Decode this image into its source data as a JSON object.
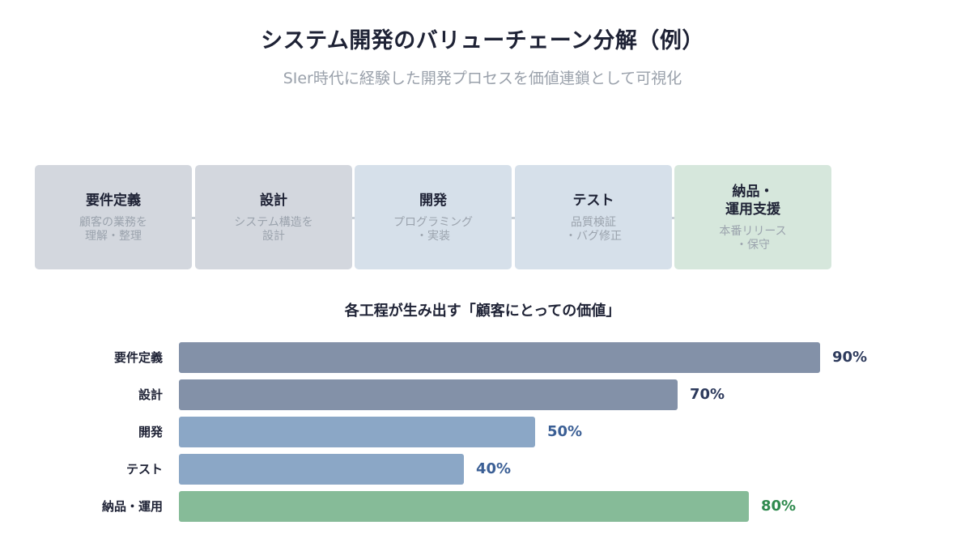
{
  "title": "システム開発のバリューチェーン分解（例）",
  "subtitle": "SIer時代に経験した開発プロセスを価値連鎖として可視化",
  "stages": [
    {
      "name": "要件定義",
      "desc": "顧客の業務を\n理解・整理",
      "bg": "#d3d7de"
    },
    {
      "name": "設計",
      "desc": "システム構造を\n設計",
      "bg": "#d3d7de"
    },
    {
      "name": "開発",
      "desc": "プログラミング\n・実装",
      "bg": "#d6e0ea"
    },
    {
      "name": "テスト",
      "desc": "品質検証\n・バグ修正",
      "bg": "#d6e0ea"
    },
    {
      "name": "納品・\n運用支援",
      "desc": "本番リリース\n・保守",
      "bg": "#d6e7dc"
    }
  ],
  "chart_data": {
    "type": "bar",
    "orientation": "horizontal",
    "title": "各工程が生み出す「顧客にとっての価値」",
    "categories": [
      "要件定義",
      "設計",
      "開発",
      "テスト",
      "納品・運用"
    ],
    "values": [
      90,
      70,
      50,
      40,
      80
    ],
    "value_labels": [
      "90%",
      "70%",
      "50%",
      "40%",
      "80%"
    ],
    "xlim": [
      0,
      100
    ],
    "bar_colors": [
      "#8391a8",
      "#8391a8",
      "#8ba7c6",
      "#8ba7c6",
      "#86bb98"
    ],
    "label_colors": [
      "#2d3a5c",
      "#2d3a5c",
      "#3b5f95",
      "#3b5f95",
      "#2f8a4e"
    ]
  }
}
